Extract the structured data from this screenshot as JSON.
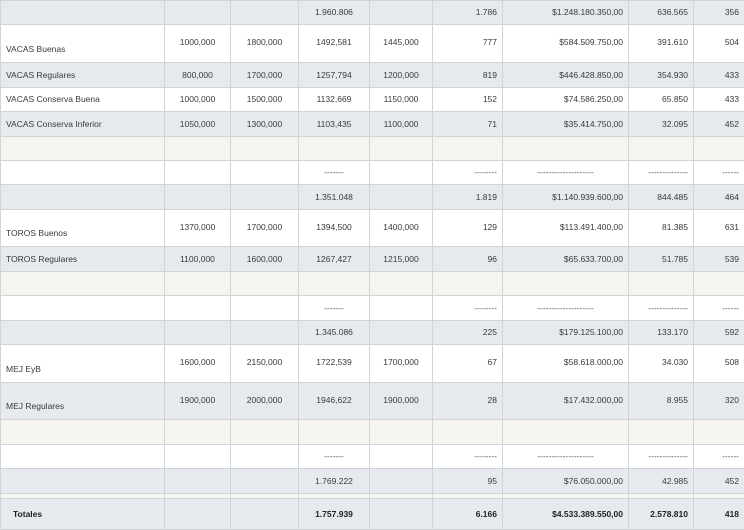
{
  "table": {
    "rows": [
      {
        "style": "c-shade",
        "h": 24,
        "name": "",
        "c1": "",
        "c2": "",
        "c3": "1.960.806",
        "c4": "",
        "c5": "1.786",
        "c6": "$1.248.180.350,00",
        "c7": "636.565",
        "c8": "356",
        "layout": "mid"
      },
      {
        "style": "c-white",
        "h": 38,
        "name": "VACAS Buenas",
        "c1": "1000,000",
        "c2": "1800,000",
        "c3": "1492,581",
        "c4": "1445,000",
        "c5": "777",
        "c6": "$584.509.750,00",
        "c7": "391.610",
        "c8": "504",
        "layout": "split"
      },
      {
        "style": "c-shade",
        "h": 25,
        "name": "VACAS Regulares",
        "c1": "800,000",
        "c2": "1700,000",
        "c3": "1257,794",
        "c4": "1200,000",
        "c5": "819",
        "c6": "$446.428.850,00",
        "c7": "354.930",
        "c8": "433",
        "layout": "mid"
      },
      {
        "style": "c-white",
        "h": 24,
        "name": "VACAS Conserva Buena",
        "c1": "1000,000",
        "c2": "1500,000",
        "c3": "1132,669",
        "c4": "1150,000",
        "c5": "152",
        "c6": "$74.586.250,00",
        "c7": "65.850",
        "c8": "433",
        "layout": "mid"
      },
      {
        "style": "c-shade",
        "h": 25,
        "name": "VACAS Conserva Inferior",
        "c1": "1050,000",
        "c2": "1300,000",
        "c3": "1103,435",
        "c4": "1100,000",
        "c5": "71",
        "c6": "$35.414.750,00",
        "c7": "32.095",
        "c8": "452",
        "layout": "mid"
      },
      {
        "style": "c-cream",
        "h": 24,
        "name": "",
        "c1": "",
        "c2": "",
        "c3": "",
        "c4": "",
        "c5": "",
        "c6": "",
        "c7": "",
        "c8": "",
        "layout": "mid"
      },
      {
        "style": "c-white",
        "h": 24,
        "name": "",
        "c1": "",
        "c2": "",
        "c3": "-------",
        "c4": "",
        "c5": "--------",
        "c6": "--------------------",
        "c7": "--------------",
        "c8": "------",
        "layout": "dash"
      },
      {
        "style": "c-shade",
        "h": 25,
        "name": "",
        "c1": "",
        "c2": "",
        "c3": "1.351.048",
        "c4": "",
        "c5": "1.819",
        "c6": "$1.140.939.600,00",
        "c7": "844.485",
        "c8": "464",
        "layout": "mid"
      },
      {
        "style": "c-white",
        "h": 37,
        "name": "TOROS Buenos",
        "c1": "1370,000",
        "c2": "1700,000",
        "c3": "1394,500",
        "c4": "1400,000",
        "c5": "129",
        "c6": "$113.491.400,00",
        "c7": "81.385",
        "c8": "631",
        "layout": "split"
      },
      {
        "style": "c-shade",
        "h": 25,
        "name": "TOROS Regulares",
        "c1": "1100,000",
        "c2": "1600,000",
        "c3": "1267,427",
        "c4": "1215,000",
        "c5": "96",
        "c6": "$65.633.700,00",
        "c7": "51.785",
        "c8": "539",
        "layout": "mid"
      },
      {
        "style": "c-cream",
        "h": 24,
        "name": "",
        "c1": "",
        "c2": "",
        "c3": "",
        "c4": "",
        "c5": "",
        "c6": "",
        "c7": "",
        "c8": "",
        "layout": "mid"
      },
      {
        "style": "c-white",
        "h": 25,
        "name": "",
        "c1": "",
        "c2": "",
        "c3": "-------",
        "c4": "",
        "c5": "--------",
        "c6": "--------------------",
        "c7": "--------------",
        "c8": "------",
        "layout": "dash"
      },
      {
        "style": "c-shade",
        "h": 24,
        "name": "",
        "c1": "",
        "c2": "",
        "c3": "1.345.086",
        "c4": "",
        "c5": "225",
        "c6": "$179.125.100,00",
        "c7": "133.170",
        "c8": "592",
        "layout": "mid"
      },
      {
        "style": "c-white",
        "h": 38,
        "name": "MEJ EyB",
        "c1": "1600,000",
        "c2": "2150,000",
        "c3": "1722,539",
        "c4": "1700,000",
        "c5": "67",
        "c6": "$58.618.000,00",
        "c7": "34.030",
        "c8": "508",
        "layout": "split"
      },
      {
        "style": "c-shade",
        "h": 37,
        "name": "MEJ Regulares",
        "c1": "1900,000",
        "c2": "2000,000",
        "c3": "1946,622",
        "c4": "1900,000",
        "c5": "28",
        "c6": "$17.432.000,00",
        "c7": "8.955",
        "c8": "320",
        "layout": "split"
      },
      {
        "style": "c-cream",
        "h": 25,
        "name": "",
        "c1": "",
        "c2": "",
        "c3": "",
        "c4": "",
        "c5": "",
        "c6": "",
        "c7": "",
        "c8": "",
        "layout": "mid"
      },
      {
        "style": "c-white",
        "h": 24,
        "name": "",
        "c1": "",
        "c2": "",
        "c3": "-------",
        "c4": "",
        "c5": "--------",
        "c6": "--------------------",
        "c7": "--------------",
        "c8": "------",
        "layout": "dash"
      },
      {
        "style": "c-shade",
        "h": 25,
        "name": "",
        "c1": "",
        "c2": "",
        "c3": "1.769.222",
        "c4": "",
        "c5": "95",
        "c6": "$76.050.000,00",
        "c7": "42.985",
        "c8": "452",
        "layout": "mid"
      },
      {
        "style": "c-cream",
        "h": 5,
        "name": "",
        "c1": "",
        "c2": "",
        "c3": "",
        "c4": "",
        "c5": "",
        "c6": "",
        "c7": "",
        "c8": "",
        "layout": "mid"
      }
    ],
    "totals": {
      "name": "Totales",
      "c1": "",
      "c2": "",
      "c3": "1.757.939",
      "c4": "",
      "c5": "6.166",
      "c6": "$4.533.389.550,00",
      "c7": "2.578.810",
      "c8": "418"
    }
  }
}
